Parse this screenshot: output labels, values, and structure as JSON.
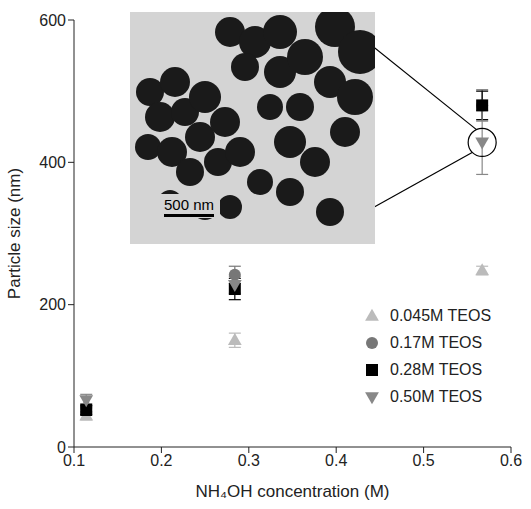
{
  "chart_data": {
    "type": "scatter",
    "x_label": "NH₄OH concentration (M)",
    "y_label": "Particle size (nm)",
    "xlim": [
      0.1,
      0.6
    ],
    "xticks": [
      0.1,
      0.2,
      0.3,
      0.4,
      0.5,
      0.6
    ],
    "ylim": [
      0,
      600
    ],
    "yticks": [
      0,
      200,
      400,
      600
    ],
    "grid": false,
    "legend": "lower right",
    "annotations": [
      "500 nm"
    ],
    "series": [
      {
        "name": "0.045M TEOS",
        "color": "#bbbbbb",
        "marker": "triangle-up",
        "x": [
          0.114,
          0.284,
          0.567
        ],
        "values": [
          44,
          150,
          248
        ],
        "errors": [
          6,
          10,
          6
        ]
      },
      {
        "name": "0.17M TEOS",
        "color": "#777777",
        "marker": "circle",
        "x": [
          0.114,
          0.284,
          0.567
        ],
        "values": [
          55,
          242,
          480
        ],
        "errors": [
          6,
          12,
          22
        ]
      },
      {
        "name": "0.28M TEOS",
        "color": "#000000",
        "marker": "square",
        "x": [
          0.114,
          0.284,
          0.567
        ],
        "values": [
          52,
          222,
          480
        ],
        "errors": [
          6,
          15,
          20
        ]
      },
      {
        "name": "0.50M TEOS",
        "color": "#888888",
        "marker": "triangle-down",
        "x": [
          0.114,
          0.284,
          0.567
        ],
        "values": [
          66,
          228,
          428
        ],
        "errors": [
          8,
          12,
          45
        ]
      }
    ]
  }
}
